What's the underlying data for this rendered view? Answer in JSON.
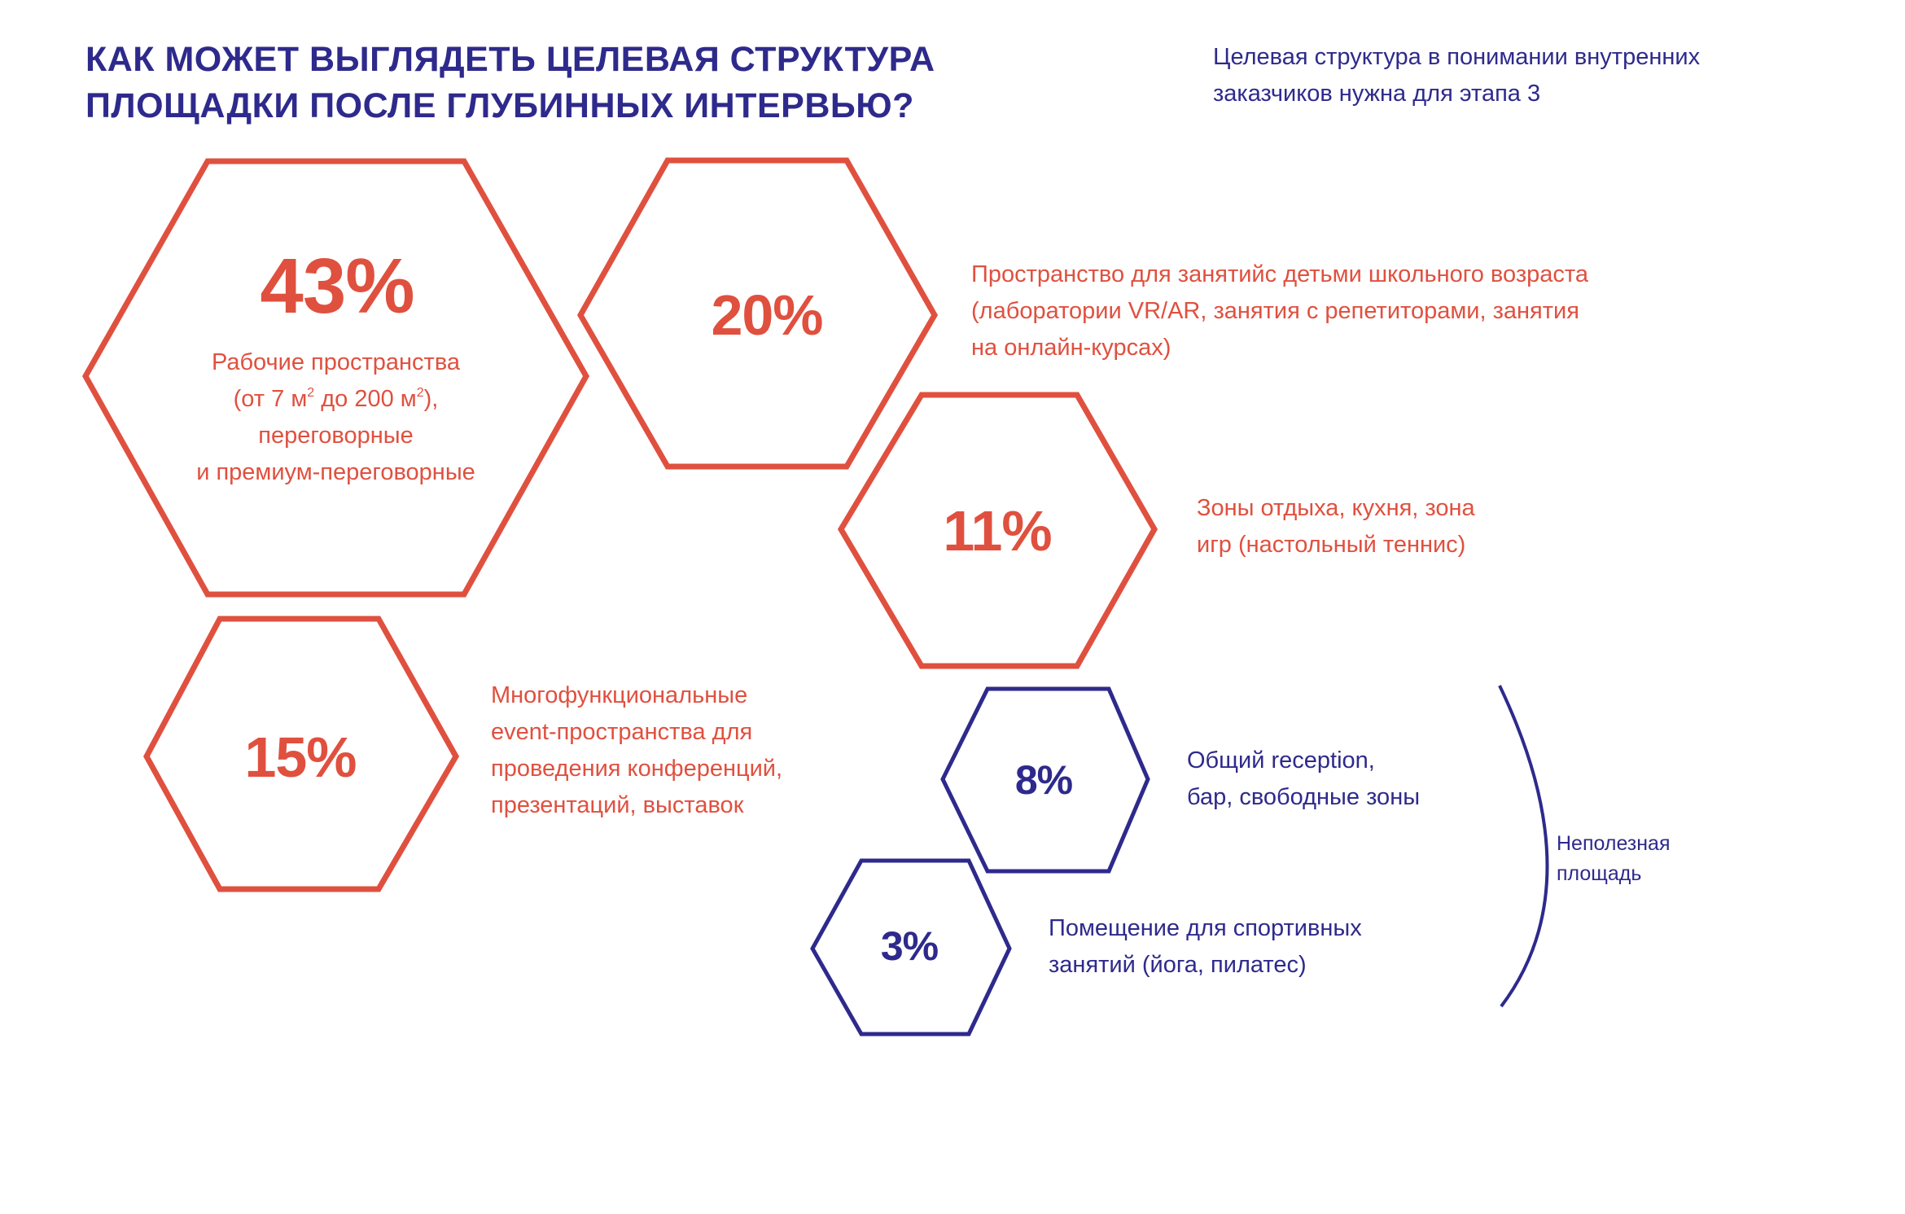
{
  "header": {
    "title": "КАК МОЖЕТ ВЫГЛЯДЕТЬ ЦЕЛЕВАЯ СТРУКТУРА\nПЛОЩАДКИ ПОСЛЕ ГЛУБИННЫХ ИНТЕРВЬЮ?",
    "subtitle": "Целевая структура в понимании внутренних\nзаказчиков нужна для этапа 3"
  },
  "colors": {
    "accent": "#e0503f",
    "primary": "#2e2a8c"
  },
  "segments": [
    {
      "percent": "43%",
      "label_lines": [
        "Рабочие пространства",
        "(от 7 м",
        "2",
        " до 200 м",
        "2",
        "),",
        "переговорные",
        "и премиум-переговорные"
      ],
      "color": "#e0503f"
    },
    {
      "percent": "20%",
      "label": "Пространство для занятийс детьми школьного возраста\n(лаборатории VR/AR, занятия с репетиторами, занятия\nна онлайн-курсах)",
      "color": "#e0503f"
    },
    {
      "percent": "11%",
      "label": "Зоны отдыха, кухня, зона\nигр (настольный теннис)",
      "color": "#e0503f"
    },
    {
      "percent": "15%",
      "label": "Многофункциональные\nevent-пространства для\nпроведения конференций,\nпрезентаций, выставок",
      "color": "#e0503f"
    },
    {
      "percent": "8%",
      "label": "Общий reception,\nбар, свободные зоны",
      "color": "#2e2a8c"
    },
    {
      "percent": "3%",
      "label": "Помещение для спортивных\nзанятий (йога, пилатес)",
      "color": "#2e2a8c"
    }
  ],
  "bracket_note": "Неполезная\nплощадь"
}
